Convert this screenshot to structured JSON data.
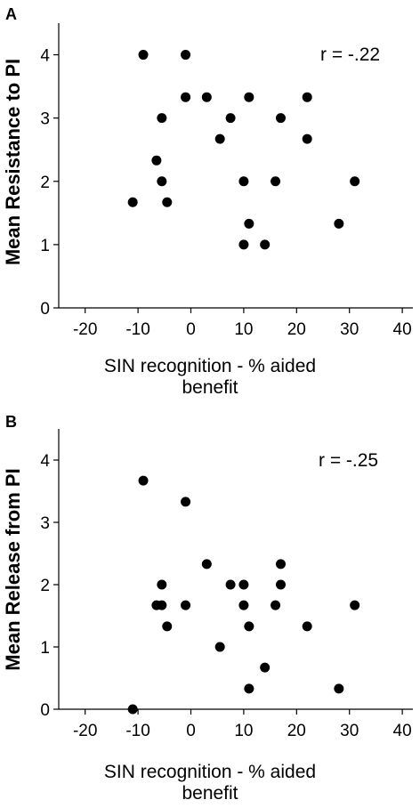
{
  "chart_data": [
    {
      "type": "scatter",
      "panel_label": "A",
      "annotation": "r = -.22",
      "xlabel": "SIN recognition - % aided benefit",
      "xlabel_lines": [
        "SIN recognition - % aided",
        "benefit"
      ],
      "ylabel": "Mean Resistance to PI",
      "xlim": [
        -25,
        42
      ],
      "ylim": [
        0,
        4.5
      ],
      "xticks": [
        -20,
        -10,
        0,
        10,
        20,
        30,
        40
      ],
      "yticks": [
        0,
        1,
        2,
        3,
        4
      ],
      "grid": false,
      "points": [
        {
          "x": -9,
          "y": 4.0
        },
        {
          "x": -1,
          "y": 4.0
        },
        {
          "x": -1,
          "y": 3.33
        },
        {
          "x": 3,
          "y": 3.33
        },
        {
          "x": 11,
          "y": 3.33
        },
        {
          "x": 22,
          "y": 3.33
        },
        {
          "x": -5.5,
          "y": 3.0
        },
        {
          "x": 7.5,
          "y": 3.0
        },
        {
          "x": 17,
          "y": 3.0
        },
        {
          "x": 5.5,
          "y": 2.67
        },
        {
          "x": 22,
          "y": 2.67
        },
        {
          "x": -6.5,
          "y": 2.33
        },
        {
          "x": -5.5,
          "y": 2.0
        },
        {
          "x": 10,
          "y": 2.0
        },
        {
          "x": 16,
          "y": 2.0
        },
        {
          "x": 31,
          "y": 2.0
        },
        {
          "x": -11,
          "y": 1.67
        },
        {
          "x": -4.5,
          "y": 1.67
        },
        {
          "x": 11,
          "y": 1.33
        },
        {
          "x": 28,
          "y": 1.33
        },
        {
          "x": 10,
          "y": 1.0
        },
        {
          "x": 14,
          "y": 1.0
        }
      ]
    },
    {
      "type": "scatter",
      "panel_label": "B",
      "annotation": "r = -.25",
      "xlabel": "SIN recognition - % aided benefit",
      "xlabel_lines": [
        "SIN recognition - % aided",
        "benefit"
      ],
      "ylabel": "Mean Release from PI",
      "xlim": [
        -25,
        42
      ],
      "ylim": [
        0,
        4.5
      ],
      "xticks": [
        -20,
        -10,
        0,
        10,
        20,
        30,
        40
      ],
      "yticks": [
        0,
        1,
        2,
        3,
        4
      ],
      "grid": false,
      "points": [
        {
          "x": -9,
          "y": 3.67
        },
        {
          "x": -1,
          "y": 3.33
        },
        {
          "x": 3,
          "y": 2.33
        },
        {
          "x": 17,
          "y": 2.33
        },
        {
          "x": -5.5,
          "y": 2.0
        },
        {
          "x": 7.5,
          "y": 2.0
        },
        {
          "x": 10,
          "y": 2.0
        },
        {
          "x": 17,
          "y": 2.0
        },
        {
          "x": -6.5,
          "y": 1.67
        },
        {
          "x": -5.5,
          "y": 1.67
        },
        {
          "x": -1,
          "y": 1.67
        },
        {
          "x": 10,
          "y": 1.67
        },
        {
          "x": 16,
          "y": 1.67
        },
        {
          "x": 31,
          "y": 1.67
        },
        {
          "x": -4.5,
          "y": 1.33
        },
        {
          "x": 11,
          "y": 1.33
        },
        {
          "x": 22,
          "y": 1.33
        },
        {
          "x": 5.5,
          "y": 1.0
        },
        {
          "x": 14,
          "y": 0.67
        },
        {
          "x": 11,
          "y": 0.33
        },
        {
          "x": 28,
          "y": 0.33
        },
        {
          "x": -11,
          "y": 0.0
        }
      ]
    }
  ]
}
